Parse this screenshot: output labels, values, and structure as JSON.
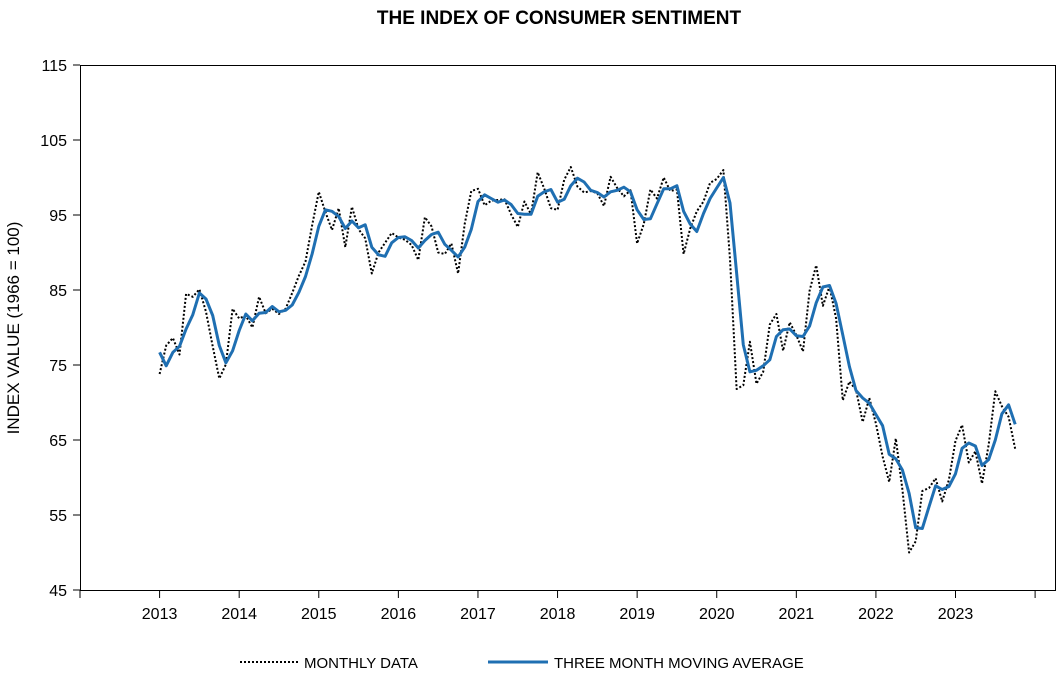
{
  "chart_data": {
    "type": "line",
    "title": "THE INDEX OF CONSUMER SENTIMENT",
    "xlabel": "",
    "ylabel": "INDEX VALUE (1966 = 100)",
    "ylim": [
      45,
      115
    ],
    "y_ticks": [
      "45",
      "55",
      "65",
      "75",
      "85",
      "95",
      "105",
      "115"
    ],
    "x_ticks": [
      "2013",
      "2014",
      "2015",
      "2016",
      "2017",
      "2018",
      "2019",
      "2020",
      "2021",
      "2022",
      "2023"
    ],
    "xlim": [
      2012.0,
      2024.25
    ],
    "grid": false,
    "legend_position": "bottom-center",
    "x_start": 2013.0,
    "x_step": 0.0833333,
    "series": [
      {
        "name": "MONTHLY DATA",
        "style": "dotted",
        "color": "#000000",
        "values": [
          73.8,
          77.6,
          78.6,
          76.4,
          84.5,
          84.1,
          85.1,
          82.1,
          77.5,
          73.2,
          75.1,
          82.5,
          81.2,
          81.6,
          80.0,
          84.1,
          81.9,
          82.5,
          81.8,
          82.5,
          84.6,
          86.9,
          88.8,
          93.6,
          98.1,
          95.4,
          93.0,
          95.9,
          90.7,
          96.1,
          93.1,
          91.9,
          87.2,
          90.0,
          91.3,
          92.6,
          92.0,
          91.7,
          91.0,
          89.0,
          94.7,
          93.5,
          90.0,
          89.8,
          91.2,
          87.2,
          93.8,
          98.2,
          98.5,
          96.3,
          96.9,
          97.0,
          97.1,
          95.1,
          93.4,
          96.8,
          95.1,
          100.7,
          98.5,
          95.9,
          95.7,
          99.7,
          101.4,
          98.8,
          98.0,
          98.2,
          97.9,
          96.2,
          100.1,
          98.6,
          97.5,
          98.3,
          91.2,
          93.8,
          98.4,
          97.2,
          100.0,
          98.2,
          98.4,
          89.8,
          93.2,
          95.5,
          96.8,
          99.3,
          99.8,
          101.0,
          89.1,
          71.8,
          72.3,
          78.1,
          72.5,
          74.1,
          80.4,
          81.8,
          76.9,
          80.7,
          79.0,
          76.8,
          84.9,
          88.3,
          82.9,
          85.5,
          81.2,
          70.3,
          72.8,
          71.7,
          67.4,
          70.6,
          67.2,
          62.8,
          59.4,
          65.2,
          58.4,
          50.0,
          51.5,
          58.2,
          58.6,
          59.9,
          56.8,
          59.7,
          64.9,
          67.0,
          62.0,
          63.5,
          59.2,
          64.4,
          71.5,
          69.5,
          68.1,
          63.8
        ]
      },
      {
        "name": "THREE MONTH MOVING AVERAGE",
        "style": "solid",
        "color": "#1f6fb2",
        "values": [
          76.7,
          74.9,
          76.7,
          77.5,
          79.8,
          81.7,
          84.6,
          83.8,
          81.6,
          77.6,
          75.3,
          76.9,
          79.6,
          81.8,
          80.9,
          81.9,
          82.0,
          82.8,
          82.1,
          82.3,
          83.0,
          84.7,
          86.8,
          89.8,
          93.5,
          95.7,
          95.5,
          94.8,
          93.2,
          94.2,
          93.3,
          93.7,
          90.7,
          89.7,
          89.5,
          91.3,
          92.0,
          92.1,
          91.6,
          90.6,
          91.6,
          92.4,
          92.7,
          91.1,
          90.3,
          89.4,
          90.7,
          93.1,
          96.8,
          97.7,
          97.2,
          96.7,
          97.0,
          96.4,
          95.2,
          95.1,
          95.1,
          97.5,
          98.1,
          98.4,
          96.7,
          97.1,
          98.9,
          99.9,
          99.4,
          98.3,
          98.0,
          97.4,
          98.1,
          98.3,
          98.7,
          98.1,
          95.7,
          94.4,
          94.5,
          96.5,
          98.5,
          98.5,
          98.9,
          95.5,
          93.8,
          92.8,
          95.2,
          97.2,
          98.6,
          100.0,
          96.6,
          87.3,
          77.7,
          74.1,
          74.3,
          74.9,
          75.7,
          78.8,
          79.7,
          79.8,
          78.9,
          78.8,
          80.2,
          83.3,
          85.4,
          85.6,
          83.2,
          79.0,
          74.8,
          71.6,
          70.6,
          69.9,
          68.4,
          66.9,
          63.1,
          62.5,
          61.0,
          57.9,
          53.3,
          53.2,
          56.1,
          58.9,
          58.4,
          58.8,
          60.5,
          63.9,
          64.6,
          64.2,
          61.6,
          62.4,
          65.0,
          68.5,
          69.7,
          67.1
        ]
      }
    ]
  }
}
